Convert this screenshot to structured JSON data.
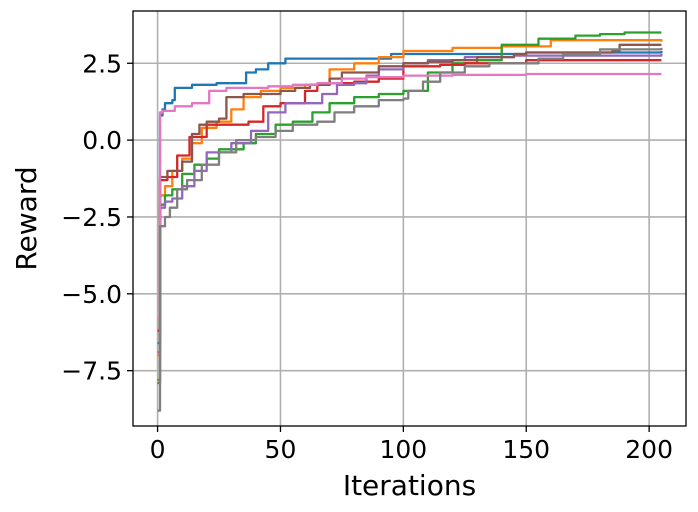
{
  "chart_data": {
    "type": "line",
    "title": "",
    "xlabel": "Iterations",
    "ylabel": "Reward",
    "xlim": [
      -10,
      215
    ],
    "ylim": [
      -9.3,
      4.2
    ],
    "xticks": [
      0,
      50,
      100,
      150,
      200
    ],
    "xtick_labels": [
      "0",
      "50",
      "100",
      "150",
      "200"
    ],
    "yticks": [
      2.5,
      0.0,
      -2.5,
      -5.0,
      -7.5
    ],
    "ytick_labels": [
      "2.5",
      "0.0",
      "−2.5",
      "−5.0",
      "−7.5"
    ],
    "grid": true,
    "legend": "none",
    "series": [
      {
        "color": "#1f77b4",
        "points": [
          [
            0,
            -6.6
          ],
          [
            1,
            0.8
          ],
          [
            2,
            1.0
          ],
          [
            3,
            1.2
          ],
          [
            6,
            1.3
          ],
          [
            7,
            1.7
          ],
          [
            14,
            1.8
          ],
          [
            24,
            1.85
          ],
          [
            36,
            2.2
          ],
          [
            40,
            2.3
          ],
          [
            45,
            2.5
          ],
          [
            52,
            2.65
          ],
          [
            70,
            2.65
          ],
          [
            95,
            2.8
          ],
          [
            150,
            2.85
          ],
          [
            205,
            2.9
          ]
        ]
      },
      {
        "color": "#ff7f0e",
        "points": [
          [
            0,
            -7.0
          ],
          [
            1,
            -1.8
          ],
          [
            3,
            -1.5
          ],
          [
            6,
            -1.0
          ],
          [
            10,
            -0.6
          ],
          [
            14,
            -0.1
          ],
          [
            18,
            0.4
          ],
          [
            24,
            0.6
          ],
          [
            30,
            1.0
          ],
          [
            35,
            1.4
          ],
          [
            42,
            1.6
          ],
          [
            50,
            1.7
          ],
          [
            60,
            1.8
          ],
          [
            70,
            2.3
          ],
          [
            80,
            2.5
          ],
          [
            90,
            2.7
          ],
          [
            100,
            2.9
          ],
          [
            120,
            3.0
          ],
          [
            140,
            3.05
          ],
          [
            160,
            3.25
          ],
          [
            205,
            3.2
          ]
        ]
      },
      {
        "color": "#2ca02c",
        "points": [
          [
            0,
            -7.8
          ],
          [
            1,
            -2.1
          ],
          [
            3,
            -1.8
          ],
          [
            6,
            -1.6
          ],
          [
            10,
            -1.1
          ],
          [
            15,
            -0.8
          ],
          [
            20,
            -0.6
          ],
          [
            25,
            -0.3
          ],
          [
            35,
            -0.1
          ],
          [
            40,
            0.2
          ],
          [
            48,
            0.5
          ],
          [
            55,
            0.6
          ],
          [
            63,
            0.9
          ],
          [
            70,
            1.2
          ],
          [
            80,
            1.4
          ],
          [
            90,
            1.5
          ],
          [
            100,
            1.6
          ],
          [
            110,
            2.2
          ],
          [
            120,
            2.5
          ],
          [
            130,
            2.6
          ],
          [
            140,
            3.1
          ],
          [
            155,
            3.3
          ],
          [
            170,
            3.4
          ],
          [
            180,
            3.45
          ],
          [
            190,
            3.5
          ],
          [
            205,
            3.5
          ]
        ]
      },
      {
        "color": "#d62728",
        "points": [
          [
            0,
            -6.2
          ],
          [
            1,
            -1.3
          ],
          [
            4,
            -1.2
          ],
          [
            8,
            -0.5
          ],
          [
            13,
            0.1
          ],
          [
            20,
            0.5
          ],
          [
            30,
            0.5
          ],
          [
            37,
            0.6
          ],
          [
            43,
            1.1
          ],
          [
            50,
            1.2
          ],
          [
            60,
            1.6
          ],
          [
            65,
            1.8
          ],
          [
            70,
            1.85
          ],
          [
            80,
            1.9
          ],
          [
            90,
            2.0
          ],
          [
            100,
            2.4
          ],
          [
            115,
            2.45
          ],
          [
            125,
            2.5
          ],
          [
            140,
            2.5
          ],
          [
            150,
            2.6
          ],
          [
            205,
            2.6
          ]
        ]
      },
      {
        "color": "#9467bd",
        "points": [
          [
            0,
            -6.9
          ],
          [
            1,
            -2.2
          ],
          [
            3,
            -2.0
          ],
          [
            6,
            -1.9
          ],
          [
            10,
            -1.5
          ],
          [
            15,
            -1.0
          ],
          [
            20,
            -0.4
          ],
          [
            30,
            -0.1
          ],
          [
            38,
            0.3
          ],
          [
            45,
            0.9
          ],
          [
            52,
            1.2
          ],
          [
            60,
            1.2
          ],
          [
            67,
            1.5
          ],
          [
            73,
            1.8
          ],
          [
            80,
            1.85
          ],
          [
            85,
            2.1
          ],
          [
            90,
            2.3
          ],
          [
            100,
            2.5
          ],
          [
            110,
            2.6
          ],
          [
            125,
            2.7
          ],
          [
            145,
            2.75
          ],
          [
            205,
            2.8
          ]
        ]
      },
      {
        "color": "#8c564b",
        "points": [
          [
            0,
            -7.9
          ],
          [
            1,
            -1.2
          ],
          [
            4,
            -1.0
          ],
          [
            10,
            -0.7
          ],
          [
            14,
            0.2
          ],
          [
            17,
            0.5
          ],
          [
            20,
            0.6
          ],
          [
            25,
            0.7
          ],
          [
            28,
            1.4
          ],
          [
            35,
            1.5
          ],
          [
            44,
            1.5
          ],
          [
            50,
            1.6
          ],
          [
            56,
            1.7
          ],
          [
            62,
            1.8
          ],
          [
            70,
            2.0
          ],
          [
            75,
            2.2
          ],
          [
            90,
            2.4
          ],
          [
            100,
            2.5
          ],
          [
            110,
            2.55
          ],
          [
            120,
            2.6
          ],
          [
            130,
            2.7
          ],
          [
            145,
            2.8
          ],
          [
            150,
            2.85
          ],
          [
            185,
            2.9
          ],
          [
            188,
            3.1
          ],
          [
            205,
            3.1
          ]
        ]
      },
      {
        "color": "#e377c2",
        "points": [
          [
            0,
            -5.8
          ],
          [
            1,
            0.9
          ],
          [
            2,
            0.95
          ],
          [
            5,
            0.95
          ],
          [
            7,
            1.1
          ],
          [
            14,
            1.2
          ],
          [
            21,
            1.6
          ],
          [
            28,
            1.7
          ],
          [
            35,
            1.7
          ],
          [
            45,
            1.75
          ],
          [
            55,
            1.8
          ],
          [
            65,
            1.85
          ],
          [
            75,
            2.0
          ],
          [
            85,
            2.05
          ],
          [
            100,
            2.1
          ],
          [
            120,
            2.12
          ],
          [
            150,
            2.15
          ],
          [
            205,
            2.15
          ]
        ]
      },
      {
        "color": "#7f7f7f",
        "points": [
          [
            0,
            -8.8
          ],
          [
            1,
            -2.8
          ],
          [
            3,
            -2.5
          ],
          [
            5,
            -2.2
          ],
          [
            8,
            -1.6
          ],
          [
            12,
            -1.3
          ],
          [
            18,
            -0.8
          ],
          [
            25,
            -0.4
          ],
          [
            32,
            0.0
          ],
          [
            40,
            0.1
          ],
          [
            48,
            0.3
          ],
          [
            55,
            0.5
          ],
          [
            65,
            0.6
          ],
          [
            72,
            0.9
          ],
          [
            80,
            1.1
          ],
          [
            90,
            1.3
          ],
          [
            100,
            1.35
          ],
          [
            102,
            1.6
          ],
          [
            108,
            1.9
          ],
          [
            115,
            2.2
          ],
          [
            125,
            2.4
          ],
          [
            135,
            2.5
          ],
          [
            145,
            2.5
          ],
          [
            155,
            2.65
          ],
          [
            165,
            2.8
          ],
          [
            180,
            2.95
          ],
          [
            205,
            3.0
          ]
        ]
      }
    ]
  }
}
